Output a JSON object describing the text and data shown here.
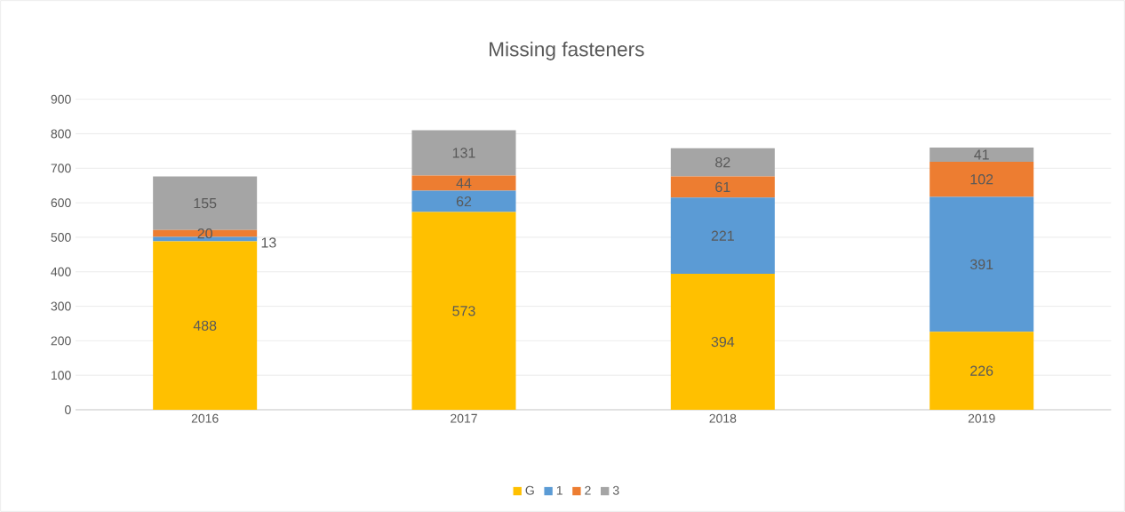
{
  "chart_data": {
    "type": "bar",
    "title": "Missing fasteners",
    "stacked": true,
    "categories": [
      "2016",
      "2017",
      "2018",
      "2019"
    ],
    "series": [
      {
        "name": "G",
        "color": "#ffc000",
        "values": [
          488,
          573,
          394,
          226
        ]
      },
      {
        "name": "1",
        "color": "#5b9bd5",
        "values": [
          13,
          62,
          221,
          391
        ]
      },
      {
        "name": "2",
        "color": "#ed7d31",
        "values": [
          20,
          44,
          61,
          102
        ]
      },
      {
        "name": "3",
        "color": "#a5a5a5",
        "values": [
          155,
          131,
          82,
          41
        ]
      }
    ],
    "ylim": [
      0,
      900
    ],
    "yticks": [
      0,
      100,
      200,
      300,
      400,
      500,
      600,
      700,
      800,
      900
    ],
    "grid": "y",
    "legend": "bottom",
    "data_labels": true
  }
}
